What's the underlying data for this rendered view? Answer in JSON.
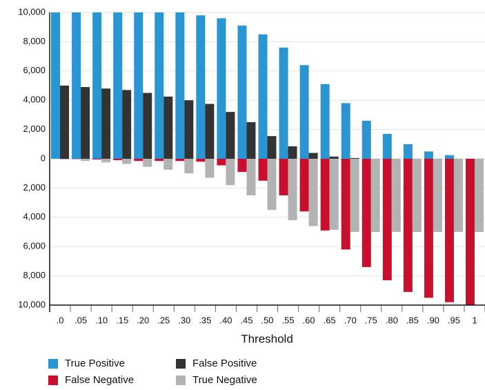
{
  "chart_data": {
    "type": "bar",
    "x_label": "Threshold",
    "categories": [
      ".0",
      ".05",
      ".10",
      ".15",
      ".20",
      ".25",
      ".30",
      ".35",
      ".40",
      ".45",
      ".50",
      ".55",
      ".60",
      ".65",
      ".70",
      ".75",
      ".80",
      ".85",
      ".90",
      ".95",
      "1"
    ],
    "series": [
      {
        "name": "True Positive",
        "color": "#2b95d1",
        "values": [
          10000,
          10000,
          10000,
          10000,
          10000,
          10000,
          10000,
          9800,
          9600,
          9100,
          8500,
          7600,
          6400,
          5100,
          3800,
          2600,
          1700,
          1000,
          500,
          250,
          0
        ]
      },
      {
        "name": "False Positive",
        "color": "#333333",
        "values": [
          5000,
          4900,
          4800,
          4700,
          4500,
          4250,
          4000,
          3750,
          3200,
          2500,
          1550,
          850,
          400,
          150,
          50,
          0,
          0,
          0,
          0,
          0,
          0
        ]
      },
      {
        "name": "False Negative",
        "color": "#c8102e",
        "values": [
          0,
          -20,
          -50,
          -100,
          -150,
          -150,
          -150,
          -200,
          -450,
          -900,
          -1500,
          -2500,
          -3600,
          -4900,
          -6200,
          -7400,
          -8300,
          -9100,
          -9500,
          -9800,
          -10000
        ]
      },
      {
        "name": "True Negative",
        "color": "#b3b3b3",
        "values": [
          -50,
          -150,
          -250,
          -350,
          -550,
          -750,
          -1000,
          -1300,
          -1800,
          -2500,
          -3500,
          -4200,
          -4600,
          -4850,
          -5000,
          -5000,
          -5000,
          -5000,
          -5000,
          -5000,
          -5000
        ]
      }
    ],
    "ylim": [
      -10000,
      10000
    ],
    "yticks": [
      {
        "value": -10000,
        "label": "10,000"
      },
      {
        "value": -8000,
        "label": "8,000"
      },
      {
        "value": -6000,
        "label": "6,000"
      },
      {
        "value": -4000,
        "label": "4,000"
      },
      {
        "value": -2000,
        "label": "2,000"
      },
      0,
      {
        "value": 2000,
        "label": "2,000"
      },
      {
        "value": 4000,
        "label": "4,000"
      },
      {
        "value": 6000,
        "label": "6,000"
      },
      {
        "value": 8000,
        "label": "8,000"
      },
      {
        "value": 10000,
        "label": "10,000"
      }
    ],
    "grid": true
  }
}
